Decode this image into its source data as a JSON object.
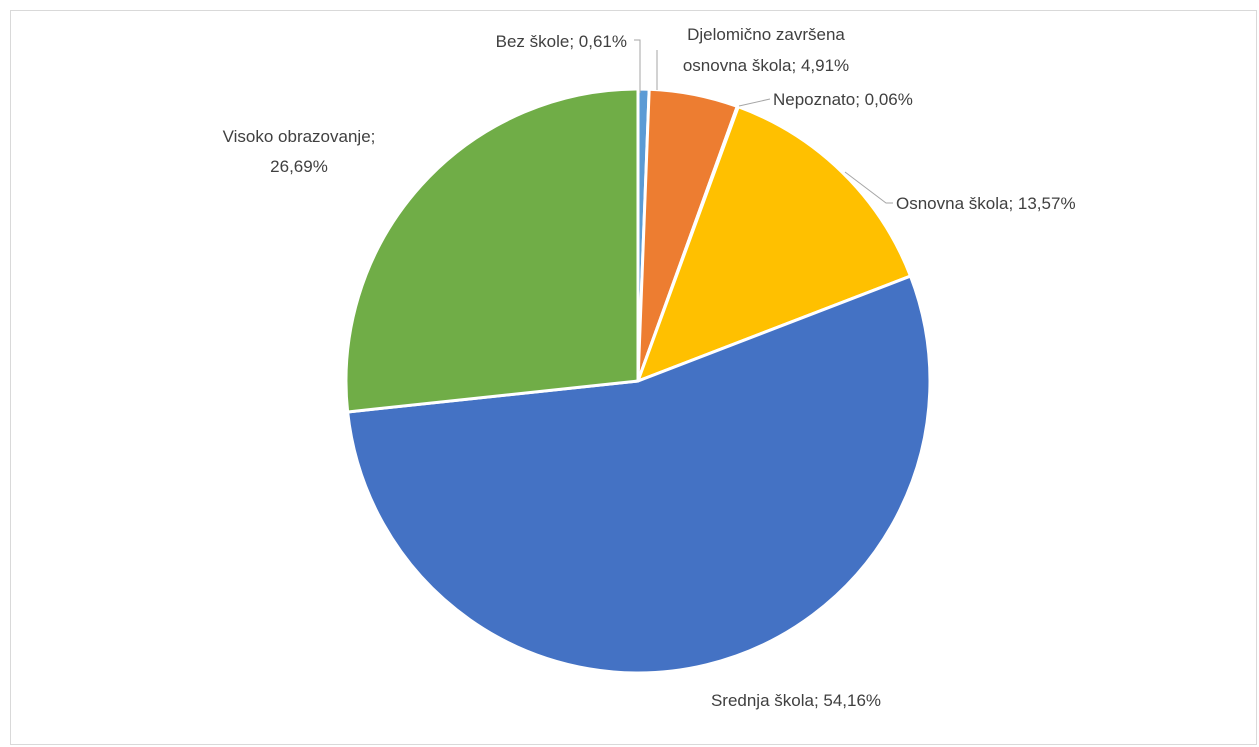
{
  "chart_data": {
    "type": "pie",
    "title": "",
    "slices": [
      {
        "label": "Bez škole; 0,61%",
        "name": "Bez škole",
        "value": 0.61,
        "color": "#5b9bd5"
      },
      {
        "label": "Djelomično završena osnovna škola; 4,91%",
        "name": "Djelomično završena osnovna škola",
        "value": 4.91,
        "color": "#ed7d31"
      },
      {
        "label": "Nepoznato; 0,06%",
        "name": "Nepoznato",
        "value": 0.06,
        "color": "#a5a5a5"
      },
      {
        "label": "Osnovna škola; 13,57%",
        "name": "Osnovna škola",
        "value": 13.57,
        "color": "#ffc000"
      },
      {
        "label": "Srednja škola; 54,16%",
        "name": "Srednja škola",
        "value": 54.16,
        "color": "#4472c4"
      },
      {
        "label": "Visoko obrazovanje; 26,69%",
        "name": "Visoko obrazovanje",
        "value": 26.69,
        "color": "#70ad47"
      }
    ],
    "start_angle": "top",
    "direction": "clockwise",
    "legend": "none",
    "data_labels": "category and percentage, outside with leader lines"
  }
}
